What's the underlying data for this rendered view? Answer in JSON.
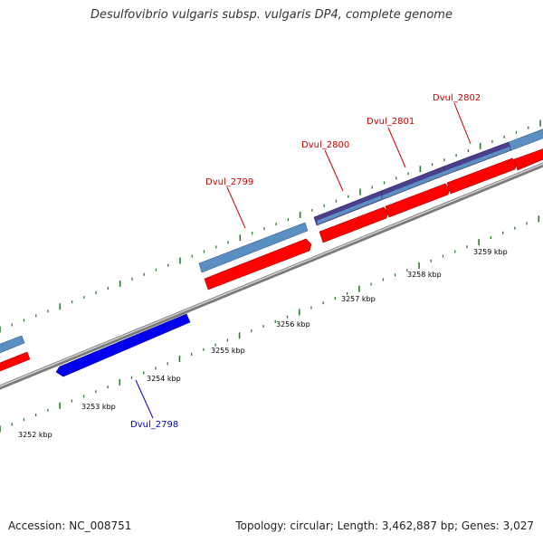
{
  "title": "Desulfovibrio vulgaris subsp. vulgaris DP4, complete genome",
  "footer": {
    "accession": "Accession: NC_008751",
    "summary": "Topology: circular; Length: 3,462,887 bp; Genes: 3,027"
  },
  "colors": {
    "backbone": "#8c8c8c",
    "forward_gene": "#5b8fc2",
    "forward_gene_alt": "#4a3f8c",
    "reverse_gene": "#ff0000",
    "reverse_gene_blue": "#0000ee",
    "tick": "#2a7a2a",
    "label_red": "#cc0000",
    "label_blue": "#0000cc"
  },
  "chart_data": {
    "type": "linear-genome-map",
    "kbp_ticks": [
      "3252 kbp",
      "3253 kbp",
      "3254 kbp",
      "3255 kbp",
      "3256 kbp",
      "3257 kbp",
      "3258 kbp",
      "3259 kbp"
    ],
    "gene_labels": [
      {
        "name": "Dvul_2798",
        "strand": "reverse"
      },
      {
        "name": "Dvul_2799",
        "strand": "forward"
      },
      {
        "name": "Dvul_2800",
        "strand": "forward"
      },
      {
        "name": "Dvul_2801",
        "strand": "forward"
      },
      {
        "name": "Dvul_2802",
        "strand": "forward"
      }
    ]
  }
}
